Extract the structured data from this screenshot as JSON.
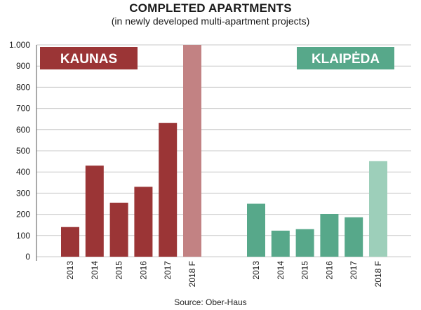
{
  "title": "COMPLETED APARTMENTS",
  "subtitle": "(in newly developed multi-apartment projects)",
  "source": "Source: Ober-Haus",
  "colors": {
    "kaunas": "#9b3536",
    "kaunas_forecast": "#c28283",
    "klaipeda": "#57a88a",
    "klaipeda_forecast": "#9dcfba",
    "grid": "#c8c8c8",
    "text": "#1a1a1a"
  },
  "chart_data": {
    "type": "bar",
    "title": "COMPLETED APARTMENTS",
    "subtitle": "(in newly developed multi-apartment projects)",
    "ylim": [
      0,
      1000
    ],
    "yticks": [
      0,
      100,
      200,
      300,
      400,
      500,
      600,
      700,
      800,
      900,
      1000
    ],
    "ytick_labels": [
      "0",
      "100",
      "200",
      "300",
      "400",
      "500",
      "600",
      "700",
      "800",
      "900",
      "1.000"
    ],
    "grid": true,
    "groups": [
      {
        "name": "KAUNAS",
        "categories": [
          "2013",
          "2014",
          "2015",
          "2016",
          "2017",
          "2018 F"
        ],
        "values": [
          140,
          430,
          255,
          330,
          632,
          1000
        ],
        "forecast": [
          false,
          false,
          false,
          false,
          false,
          true
        ]
      },
      {
        "name": "KLAIPĖDA",
        "categories": [
          "2013",
          "2014",
          "2015",
          "2016",
          "2017",
          "2018 F"
        ],
        "values": [
          250,
          123,
          130,
          202,
          186,
          451
        ],
        "forecast": [
          false,
          false,
          false,
          false,
          false,
          true
        ]
      }
    ]
  }
}
